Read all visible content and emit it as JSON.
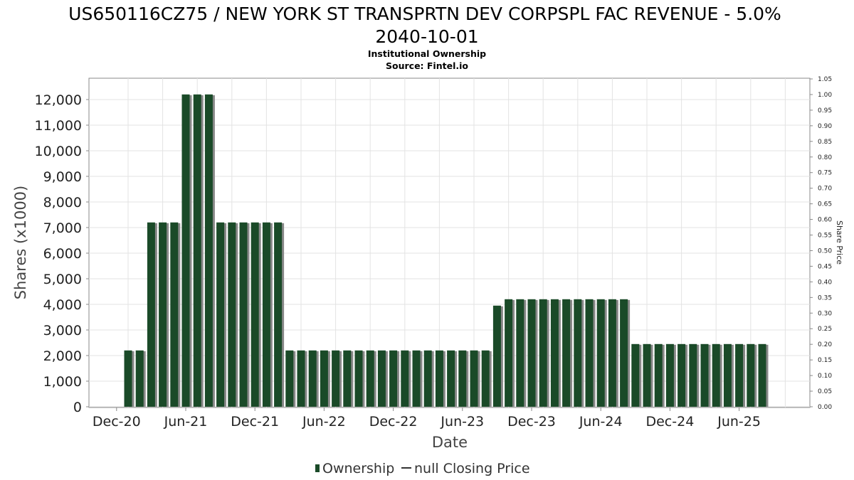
{
  "chart_data": {
    "type": "bar",
    "title_line1": "US650116CZ75 / NEW YORK ST TRANSPRTN DEV CORPSPL FAC REVENUE - 5.0%",
    "title_line2": "2040-10-01",
    "subtitle1": "Institutional Ownership",
    "subtitle2": "Source: Fintel.io",
    "xlabel": "Date",
    "ylabel": "Shares (x1000)",
    "y2label": "Share Price",
    "ylim": [
      0,
      12800
    ],
    "y2lim": [
      0,
      1.05
    ],
    "grid": true,
    "legend_position": "bottom",
    "yticks": [
      "0",
      "1,000",
      "2,000",
      "3,000",
      "4,000",
      "5,000",
      "6,000",
      "7,000",
      "8,000",
      "9,000",
      "10,000",
      "11,000",
      "12,000"
    ],
    "y2ticks": [
      "0.00",
      "0.05",
      "0.10",
      "0.15",
      "0.20",
      "0.25",
      "0.30",
      "0.35",
      "0.40",
      "0.45",
      "0.50",
      "0.55",
      "0.60",
      "0.65",
      "0.70",
      "0.75",
      "0.80",
      "0.85",
      "0.90",
      "0.95",
      "1.00",
      "1.05"
    ],
    "xticks": [
      "Dec-20",
      "Jun-21",
      "Dec-21",
      "Jun-22",
      "Dec-22",
      "Jun-23",
      "Dec-23",
      "Jun-24",
      "Dec-24",
      "Jun-25"
    ],
    "x_start": "2020-10",
    "categories": [
      "2020-10",
      "2020-11",
      "2020-12",
      "2021-01",
      "2021-02",
      "2021-03",
      "2021-04",
      "2021-05",
      "2021-06",
      "2021-07",
      "2021-08",
      "2021-09",
      "2021-10",
      "2021-11",
      "2021-12",
      "2022-01",
      "2022-02",
      "2022-03",
      "2022-04",
      "2022-05",
      "2022-06",
      "2022-07",
      "2022-08",
      "2022-09",
      "2022-10",
      "2022-11",
      "2022-12",
      "2023-01",
      "2023-02",
      "2023-03",
      "2023-04",
      "2023-05",
      "2023-06",
      "2023-07",
      "2023-08",
      "2023-09",
      "2023-10",
      "2023-11",
      "2023-12",
      "2024-01",
      "2024-02",
      "2024-03",
      "2024-04",
      "2024-05",
      "2024-06",
      "2024-07",
      "2024-08",
      "2024-09",
      "2024-10",
      "2024-11",
      "2024-12",
      "2025-01",
      "2025-02",
      "2025-03",
      "2025-04",
      "2025-05",
      "2025-06",
      "2025-07",
      "2025-08"
    ],
    "series": [
      {
        "name": "Ownership",
        "color": "#1a4a28",
        "shadow_color": "#888888",
        "values": [
          0,
          0,
          0,
          2200,
          2200,
          7200,
          7200,
          7200,
          12200,
          12200,
          12200,
          7200,
          7200,
          7200,
          7200,
          7200,
          7200,
          2200,
          2200,
          2200,
          2200,
          2200,
          2200,
          2200,
          2200,
          2200,
          2200,
          2200,
          2200,
          2200,
          2200,
          2200,
          2200,
          2200,
          2200,
          3950,
          4200,
          4200,
          4200,
          4200,
          4200,
          4200,
          4200,
          4200,
          4200,
          4200,
          4200,
          2450,
          2450,
          2450,
          2450,
          2450,
          2450,
          2450,
          2450,
          2450,
          2450,
          2450,
          2450
        ]
      }
    ],
    "legend": {
      "ownership_label": "Ownership",
      "price_label": "null Closing Price"
    }
  }
}
